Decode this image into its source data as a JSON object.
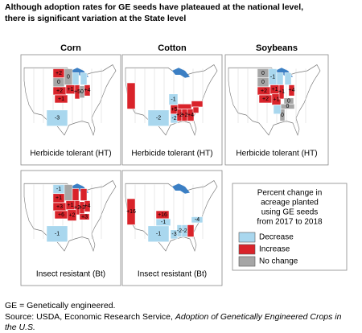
{
  "title": [
    "Although adoption rates for GE seeds have plateaued at the national level,",
    "there is significant variation at the State level"
  ],
  "columns": [
    "Corn",
    "Cotton",
    "Soybeans"
  ],
  "panels": [
    {
      "caption": "Herbicide tolerant (HT)",
      "states": [
        {
          "label": "+2",
          "color": "#d9232a"
        },
        {
          "label": "0",
          "color": "#a6a6a6"
        },
        {
          "label": "+2",
          "color": "#d9232a"
        },
        {
          "label": "+1",
          "color": "#d9232a"
        },
        {
          "label": "0",
          "color": "#a6a6a6"
        },
        {
          "label": "+1",
          "color": "#d9232a"
        },
        {
          "label": "+5",
          "color": "#d9232a"
        },
        {
          "label": "0",
          "color": "#a6a6a6"
        },
        {
          "label": "+4",
          "color": "#d9232a"
        },
        {
          "color": "#a9d7ee"
        },
        {
          "color": "#a9d7ee"
        },
        {
          "label": "-3",
          "color": "#a9d7ee"
        }
      ]
    },
    {
      "caption": "Herbicide tolerant (HT)",
      "states": [
        {
          "color": "#d9232a"
        },
        {
          "label": "-1",
          "color": "#a9d7ee"
        },
        {
          "label": "-2",
          "color": "#a9d7ee"
        },
        {
          "label": "+5",
          "color": "#d9232a"
        },
        {
          "label": "-2",
          "color": "#a9d7ee"
        },
        {
          "label": "+2",
          "color": "#d9232a"
        },
        {
          "label": "+2",
          "color": "#d9232a"
        },
        {
          "label": "+4",
          "color": "#d9232a"
        },
        {
          "color": "#d9232a"
        },
        {
          "color": "#d9232a"
        },
        {
          "color": "#d9232a"
        }
      ]
    },
    {
      "caption": "Herbicide tolerant (HT)",
      "states": [
        {
          "label": "0",
          "color": "#a6a6a6"
        },
        {
          "label": "-1",
          "color": "#a9d7ee"
        },
        {
          "label": "0",
          "color": "#a6a6a6"
        },
        {
          "color": "#a9d7ee"
        },
        {
          "color": "#a9d7ee"
        },
        {
          "label": "+2",
          "color": "#d9232a"
        },
        {
          "label": "+2",
          "color": "#d9232a"
        },
        {
          "label": "+1",
          "color": "#d9232a"
        },
        {
          "label": "+1",
          "color": "#d9232a"
        },
        {
          "label": "+1",
          "color": "#d9232a"
        },
        {
          "label": "+4",
          "color": "#d9232a"
        },
        {
          "label": "0",
          "color": "#a6a6a6"
        },
        {
          "label": "0",
          "color": "#a6a6a6"
        },
        {
          "label": "0",
          "color": "#a6a6a6"
        },
        {
          "color": "#a9d7ee"
        }
      ]
    },
    {
      "caption": "Insect resistant (Bt)",
      "states": [
        {
          "label": "-1",
          "color": "#a9d7ee"
        },
        {
          "color": "#a6a6a6"
        },
        {
          "color": "#d9232a"
        },
        {
          "color": "#d9232a"
        },
        {
          "label": "+1",
          "color": "#d9232a"
        },
        {
          "label": "+3",
          "color": "#d9232a"
        },
        {
          "label": "+1",
          "color": "#d9232a"
        },
        {
          "label": "+2",
          "color": "#d9232a"
        },
        {
          "label": "+3",
          "color": "#d9232a"
        },
        {
          "label": "+4",
          "color": "#d9232a"
        },
        {
          "label": "+6",
          "color": "#d9232a"
        },
        {
          "label": "+2",
          "color": "#d9232a"
        },
        {
          "label": "+3",
          "color": "#d9232a"
        },
        {
          "label": "-1",
          "color": "#a9d7ee"
        }
      ]
    },
    {
      "caption": "Insect resistant (Bt)",
      "states": [
        {
          "label": "+16",
          "color": "#d9232a"
        },
        {
          "label": "+16",
          "color": "#d9232a"
        },
        {
          "label": "-1",
          "color": "#a9d7ee"
        },
        {
          "label": "-1",
          "color": "#a9d7ee"
        },
        {
          "label": "-3",
          "color": "#a9d7ee"
        },
        {
          "label": "-2",
          "color": "#a9d7ee"
        },
        {
          "label": "-2",
          "color": "#a9d7ee"
        },
        {
          "color": "#d9232a"
        },
        {
          "label": "-4",
          "color": "#a9d7ee"
        }
      ]
    }
  ],
  "legend": {
    "title": [
      "Percent change in",
      "acreage planted",
      "using GE seeds",
      "from 2017 to 2018"
    ],
    "items": [
      {
        "label": "Decrease",
        "color": "#a9d7ee"
      },
      {
        "label": "Increase",
        "color": "#d9232a"
      },
      {
        "label": "No change",
        "color": "#a6a6a6"
      }
    ]
  },
  "footnote": "GE = Genetically engineered.",
  "source": {
    "prefix": "Source: USDA, Economic Research Service, ",
    "title": "Adoption of Genetically Engineered Crops in the U.S."
  }
}
